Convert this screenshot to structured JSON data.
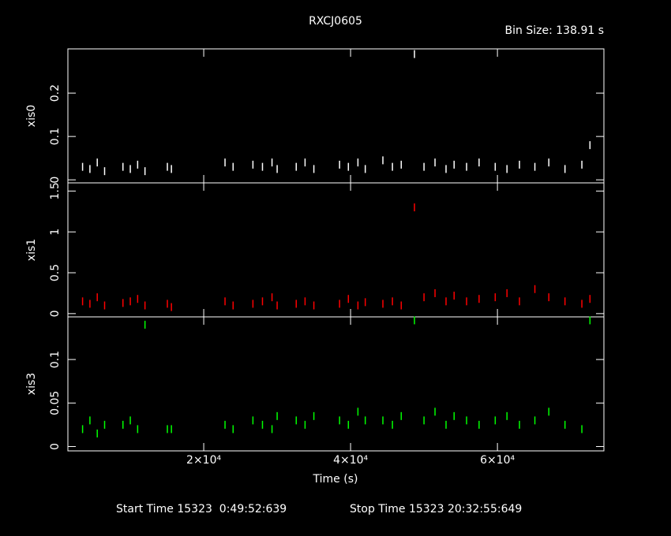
{
  "chart_data": {
    "type": "scatter",
    "title": "RXCJ0605",
    "subtitle": "Bin Size: 138.91 s",
    "xlabel": "Time (s)",
    "xlim": [
      1500,
      74500
    ],
    "xticks": [
      {
        "value": 20000,
        "label": "2×10⁴"
      },
      {
        "value": 40000,
        "label": "4×10⁴"
      },
      {
        "value": 60000,
        "label": "6×10⁴"
      }
    ],
    "x": [
      3500,
      4500,
      5500,
      6500,
      9000,
      10000,
      11000,
      12000,
      15050,
      15600,
      22900,
      24000,
      26700,
      28000,
      29300,
      30000,
      32600,
      33800,
      35000,
      38500,
      39700,
      41000,
      42000,
      44400,
      45700,
      46900,
      48700,
      50000,
      51500,
      53000,
      54100,
      55800,
      57500,
      59700,
      61300,
      63000,
      65100,
      67000,
      69200,
      71500,
      72600
    ],
    "series": [
      {
        "name": "xis0",
        "color": "#ffffff",
        "ylim": [
          -0.007,
          0.302
        ],
        "yticks": [
          0,
          0.1,
          0.2
        ],
        "values": [
          0.03,
          0.025,
          0.04,
          0.02,
          0.03,
          0.025,
          0.035,
          0.02,
          0.03,
          0.025,
          0.04,
          0.03,
          0.035,
          0.03,
          0.04,
          0.025,
          0.03,
          0.04,
          0.025,
          0.035,
          0.03,
          0.04,
          0.025,
          0.045,
          0.03,
          0.035,
          0.29,
          0.03,
          0.04,
          0.025,
          0.035,
          0.03,
          0.04,
          0.03,
          0.025,
          0.035,
          0.03,
          0.04,
          0.025,
          0.035,
          0.08
        ]
      },
      {
        "name": "xis1",
        "color": "#ff0000",
        "ylim": [
          -0.04,
          1.6
        ],
        "yticks": [
          0,
          0.5,
          1,
          1.5
        ],
        "values": [
          0.15,
          0.12,
          0.2,
          0.1,
          0.13,
          0.15,
          0.18,
          0.1,
          0.12,
          0.08,
          0.15,
          0.1,
          0.12,
          0.15,
          0.2,
          0.1,
          0.12,
          0.15,
          0.1,
          0.12,
          0.18,
          0.1,
          0.14,
          0.12,
          0.15,
          0.1,
          1.3,
          0.2,
          0.25,
          0.15,
          0.22,
          0.15,
          0.18,
          0.2,
          0.25,
          0.15,
          0.3,
          0.2,
          0.15,
          0.12,
          0.18
        ]
      },
      {
        "name": "xis3",
        "color": "#00ff00",
        "ylim": [
          -0.005,
          0.149
        ],
        "yticks": [
          0,
          0.05,
          0.1
        ],
        "values": [
          0.02,
          0.03,
          0.015,
          0.025,
          0.025,
          0.03,
          0.02,
          0.14,
          0.02,
          0.02,
          0.025,
          0.02,
          0.03,
          0.025,
          0.02,
          0.035,
          0.03,
          0.025,
          0.035,
          0.03,
          0.025,
          0.04,
          0.03,
          0.03,
          0.025,
          0.035,
          0.145,
          0.03,
          0.04,
          0.025,
          0.035,
          0.03,
          0.025,
          0.03,
          0.035,
          0.025,
          0.03,
          0.04,
          0.025,
          0.02,
          0.145
        ]
      }
    ],
    "annotations": [
      "Start Time 15323  0:49:52:639",
      "Stop Time 15323 20:32:55:649"
    ]
  }
}
